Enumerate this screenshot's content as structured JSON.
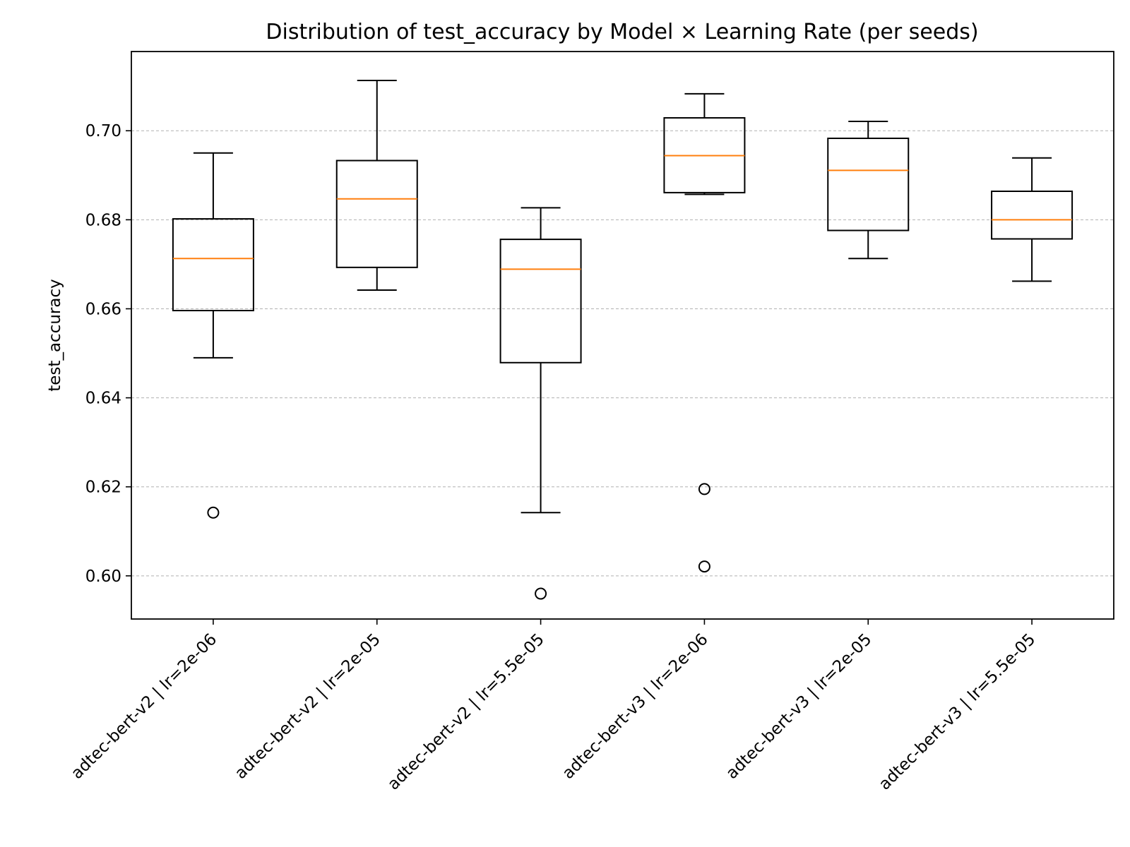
{
  "chart_data": {
    "type": "boxplot",
    "title": "Distribution of test_accuracy by Model × Learning Rate (per seeds)",
    "xlabel": "",
    "ylabel": "test_accuracy",
    "ylim": [
      0.5903,
      0.7178
    ],
    "yticks": [
      0.6,
      0.62,
      0.64,
      0.66,
      0.68,
      0.7
    ],
    "ytick_labels": [
      "0.60",
      "0.62",
      "0.64",
      "0.66",
      "0.68",
      "0.70"
    ],
    "grid": "y-dashed",
    "categories": [
      "adtec-bert-v2 | lr=2e-06",
      "adtec-bert-v2 | lr=2e-05",
      "adtec-bert-v2 | lr=5.5e-05",
      "adtec-bert-v3 | lr=2e-06",
      "adtec-bert-v3 | lr=2e-05",
      "adtec-bert-v3 | lr=5.5e-05"
    ],
    "boxes": [
      {
        "whisker_low": 0.649,
        "q1": 0.6596,
        "median": 0.6713,
        "q3": 0.6802,
        "whisker_high": 0.695,
        "outliers": [
          0.6142
        ]
      },
      {
        "whisker_low": 0.6642,
        "q1": 0.6693,
        "median": 0.6847,
        "q3": 0.6933,
        "whisker_high": 0.7113,
        "outliers": []
      },
      {
        "whisker_low": 0.6142,
        "q1": 0.6479,
        "median": 0.6689,
        "q3": 0.6756,
        "whisker_high": 0.6827,
        "outliers": [
          0.596
        ]
      },
      {
        "whisker_low": 0.6857,
        "q1": 0.6861,
        "median": 0.6944,
        "q3": 0.7029,
        "whisker_high": 0.7083,
        "outliers": [
          0.6195,
          0.6021
        ]
      },
      {
        "whisker_low": 0.6713,
        "q1": 0.6776,
        "median": 0.6911,
        "q3": 0.6983,
        "whisker_high": 0.7021,
        "outliers": []
      },
      {
        "whisker_low": 0.6662,
        "q1": 0.6757,
        "median": 0.68,
        "q3": 0.6864,
        "whisker_high": 0.6939,
        "outliers": []
      }
    ],
    "colors": {
      "box": "#000000",
      "median": "#ff7f0e",
      "grid": "#b0b0b0"
    }
  }
}
